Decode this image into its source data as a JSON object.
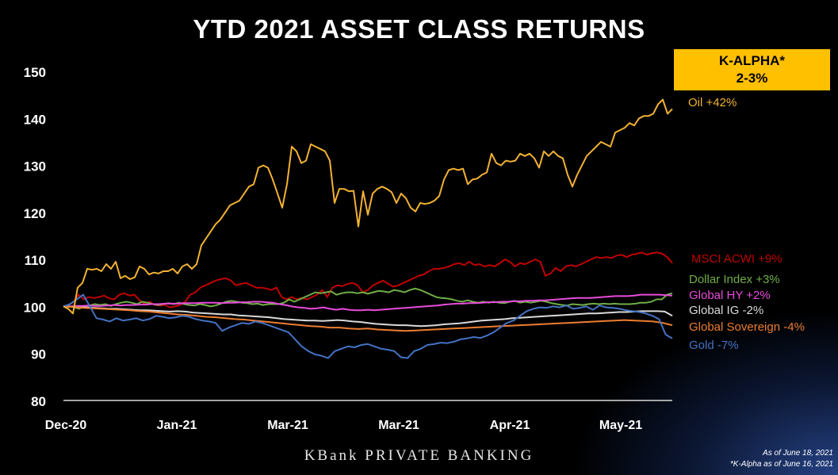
{
  "title": "YTD 2021 ASSET CLASS RETURNS",
  "kalpha": {
    "line1": "K-ALPHA*",
    "line2": "2-3%"
  },
  "footer": {
    "brand": "KBank PRIVATE BANKING",
    "asof": "As of June 18, 2021",
    "kalpha_note": "*K-Alpha as of June 16, 2021"
  },
  "chart_data": {
    "type": "line",
    "title": "YTD 2021 ASSET CLASS RETURNS",
    "xlabel": "",
    "ylabel": "",
    "x_tick_labels": [
      "Dec-20",
      "Jan-21",
      "Mar-21",
      "Mar-21",
      "Apr-21",
      "May-21"
    ],
    "y_ticks": [
      80,
      90,
      100,
      110,
      120,
      130,
      140,
      150
    ],
    "ylim": [
      80,
      150
    ],
    "grid": false,
    "legend": "right",
    "series": [
      {
        "name": "Oil +42%",
        "color": "#f2b233",
        "values": [
          100,
          99.5,
          98.5,
          104,
          105,
          108,
          107.8,
          108,
          107.5,
          109,
          108,
          109.5,
          106,
          106.5,
          105.8,
          106.2,
          108.5,
          108,
          106.8,
          107.2,
          107,
          107.5,
          107.5,
          108,
          107,
          108.5,
          109,
          108,
          109,
          113,
          114.5,
          116,
          117.5,
          118.5,
          120,
          121.5,
          122,
          122.5,
          124,
          125.5,
          126,
          129.5,
          130,
          129.5,
          127,
          124,
          121,
          126,
          134,
          133,
          130.5,
          131,
          134.5,
          134,
          133.5,
          133,
          131,
          122,
          125,
          125,
          124.5,
          124.6,
          117,
          124.5,
          119.5,
          124,
          125,
          125.5,
          125,
          124.3,
          122,
          124,
          123,
          121,
          120.2,
          122,
          121.8,
          122,
          122.5,
          123.5,
          127,
          129,
          129.3,
          129,
          129.3,
          126,
          127,
          127.2,
          128,
          128.5,
          132.5,
          130.5,
          130,
          131,
          130.8,
          131,
          132.5,
          132,
          132.5,
          131.5,
          129.5,
          133,
          132,
          133,
          132,
          131.5,
          128,
          125.5,
          128,
          130,
          132,
          133,
          134,
          135,
          134.5,
          134,
          137,
          137.5,
          138,
          139,
          138.5,
          140,
          140.5,
          140.5,
          141,
          143,
          144,
          141,
          142
        ]
      },
      {
        "name": "MSCI ACWI +9%",
        "color": "#c00000",
        "values": [
          100,
          100.2,
          101,
          102.5,
          101.5,
          102,
          101.8,
          102,
          102.3,
          101.7,
          101.5,
          102.5,
          102.8,
          102.3,
          102.5,
          101.3,
          100.5,
          101,
          100.3,
          100.2,
          100.3,
          99.8,
          100,
          100.3,
          101,
          102.5,
          103,
          104,
          104.5,
          105,
          105.5,
          105.8,
          106,
          105.5,
          104.5,
          104.8,
          105,
          104.5,
          104,
          104,
          103.8,
          103.5,
          104,
          102,
          101.5,
          102,
          101.5,
          101.8,
          101.5,
          102,
          102.5,
          103.5,
          102,
          104,
          104.5,
          104.3,
          104.8,
          105,
          104.5,
          103,
          103.5,
          104.5,
          105,
          105.5,
          104.8,
          104.2,
          104.5,
          105,
          105.5,
          106,
          106.5,
          106.8,
          107.5,
          108,
          108,
          108.2,
          108.5,
          109,
          109.2,
          108.8,
          109.5,
          108.8,
          109,
          108.5,
          108.8,
          108.5,
          109.2,
          110,
          109.5,
          108.5,
          109.2,
          109,
          109.5,
          110,
          109.5,
          106.5,
          107,
          108.2,
          107.5,
          108.5,
          108.8,
          108.5,
          109,
          109.5,
          110,
          110.5,
          110.3,
          110.5,
          110.3,
          110.8,
          111,
          110.5,
          111,
          111.2,
          111.5,
          111,
          111.3,
          111.5,
          111.2,
          110.5,
          109.2
        ]
      },
      {
        "name": "Dollar Index +3%",
        "color": "#70ad47",
        "values": [
          100,
          100.1,
          99.8,
          99.5,
          100,
          100.2,
          100.5,
          100.3,
          100.5,
          100.1,
          100.5,
          100.8,
          101,
          100.8,
          100.5,
          101,
          100.8,
          100.5,
          100.3,
          100.5,
          100.7,
          100.5,
          100.8,
          100.5,
          100.3,
          100.2,
          100.5,
          100.3,
          100,
          100.2,
          100.6,
          101,
          101.2,
          101,
          100.8,
          100.7,
          100.5,
          100.6,
          100.3,
          100.5,
          100.5,
          100.5,
          100.8,
          101.5,
          101,
          101.5,
          102,
          102.5,
          103,
          102.8,
          103,
          103.2,
          102.5,
          102.8,
          103,
          103,
          102.8,
          103,
          102.7,
          103,
          103.3,
          103.2,
          103,
          103.5,
          103.3,
          103,
          103.5,
          103.8,
          103.5,
          103,
          102.5,
          102,
          101.8,
          101.7,
          101.5,
          101.2,
          101,
          101.3,
          101,
          100.8,
          101,
          100.8,
          101,
          100.8,
          100.7,
          101,
          101.2,
          100.8,
          101,
          100.8,
          101,
          101.2,
          101,
          100.7,
          100.5,
          100.3,
          100.2,
          100.5,
          100.4,
          100.3,
          100.5,
          100.6,
          100.5,
          100.6,
          100.5,
          100.6,
          100.5,
          100.5,
          100.5,
          100.6,
          100.8,
          100.8,
          101,
          101.5,
          101.5,
          102.5,
          102.8
        ]
      },
      {
        "name": "Global HY +2%",
        "color": "#e84bdb",
        "values": [
          100,
          100,
          100.1,
          100.1,
          100.2,
          100.1,
          100.1,
          100.2,
          100.3,
          100.2,
          100.3,
          100.3,
          100.4,
          100.4,
          100.5,
          100.5,
          100.6,
          100.6,
          100.6,
          100.7,
          100.7,
          100.7,
          100.8,
          100.8,
          100.8,
          100.7,
          100.8,
          100.8,
          100.9,
          100.9,
          101,
          101,
          100.9,
          100.8,
          100.5,
          100.3,
          100,
          99.8,
          99.7,
          99.5,
          99.6,
          99.8,
          99.5,
          99.3,
          99.5,
          99.3,
          99.2,
          99.2,
          99.3,
          99.2,
          99.3,
          99.4,
          99.5,
          99.6,
          99.7,
          99.8,
          99.9,
          100,
          100.1,
          100.2,
          100.4,
          100.5,
          100.6,
          100.6,
          100.7,
          100.7,
          100.8,
          100.9,
          100.9,
          101,
          101,
          101.1,
          101.1,
          101.2,
          101.2,
          101.3,
          101.3,
          101.4,
          101.5,
          101.6,
          101.7,
          101.8,
          101.8,
          101.8,
          101.9,
          102,
          102.1,
          102.2,
          102.2,
          102.2,
          102.3,
          102.5,
          102.5,
          102.5,
          102.5,
          102.4,
          102.3
        ]
      },
      {
        "name": "Global IG -2%",
        "color": "#d9d9d9",
        "values": [
          100,
          99.9,
          99.8,
          99.8,
          99.7,
          99.6,
          99.5,
          99.5,
          99.4,
          99.3,
          99.2,
          99.2,
          99.1,
          99,
          98.9,
          99,
          98.9,
          98.7,
          98.6,
          98.5,
          98.4,
          98.3,
          98.3,
          98.1,
          98,
          97.9,
          97.8,
          97.7,
          97.5,
          97.3,
          97.2,
          97.1,
          97,
          97,
          96.9,
          97,
          97.1,
          97,
          96.8,
          96.7,
          96.5,
          96.3,
          96.2,
          96.1,
          96,
          96,
          95.9,
          95.8,
          95.9,
          96,
          96.2,
          96.3,
          96.4,
          96.6,
          96.8,
          97,
          97.1,
          97.2,
          97.3,
          97.5,
          97.6,
          97.7,
          97.8,
          97.9,
          98,
          98.1,
          98.2,
          98.3,
          98.4,
          98.5,
          98.5,
          98.6,
          98.7,
          98.8,
          98.8,
          98.9,
          99,
          99,
          99,
          98.9,
          98
        ]
      },
      {
        "name": "Global Sovereign -4%",
        "color": "#ed7d31",
        "values": [
          100,
          99.9,
          99.7,
          99.6,
          99.5,
          99.4,
          99.3,
          99.2,
          99,
          98.9,
          98.7,
          98.5,
          98.3,
          98.2,
          98,
          97.8,
          97.7,
          97.5,
          97.3,
          97.2,
          97,
          96.8,
          96.6,
          96.4,
          96.2,
          96,
          95.8,
          95.7,
          95.5,
          95.5,
          95.3,
          95.2,
          95.3,
          95.1,
          95,
          94.9,
          94.8,
          94.9,
          95,
          95.1,
          95.2,
          95.3,
          95.4,
          95.5,
          95.6,
          95.7,
          95.8,
          95.9,
          96,
          96.1,
          96.2,
          96.3,
          96.4,
          96.5,
          96.6,
          96.7,
          96.8,
          96.9,
          97,
          97.1,
          97,
          96.9,
          96.8,
          96.5,
          96
        ]
      },
      {
        "name": "Gold -7%",
        "color": "#4472c4",
        "values": [
          100,
          100.5,
          101.5,
          102.5,
          100,
          97.5,
          97.2,
          96.8,
          97.5,
          97,
          97.2,
          97.5,
          97,
          97.3,
          98,
          97.8,
          97.5,
          97.7,
          98,
          97.8,
          97.3,
          97,
          96.8,
          96.5,
          94.8,
          95.5,
          96,
          96.5,
          96.3,
          96.8,
          96.5,
          96,
          95.5,
          95,
          94.5,
          93,
          91.5,
          90.5,
          89.8,
          89.5,
          89,
          90.5,
          91,
          91.5,
          91.3,
          91.8,
          92,
          91.5,
          91,
          90.8,
          90.5,
          89.2,
          89,
          90.5,
          91,
          91.8,
          92,
          92.3,
          92.2,
          92.5,
          93,
          93.2,
          93.5,
          93.3,
          93.8,
          94.5,
          95.5,
          96.5,
          97,
          98,
          99,
          99.5,
          99.8,
          99.7,
          100,
          99.8,
          100.2,
          99.5,
          99.7,
          100,
          99.3,
          100.2,
          99.8,
          99.7,
          99.5,
          99.2,
          99,
          98.8,
          98.5,
          98,
          97.3,
          94,
          93.2
        ]
      }
    ]
  }
}
